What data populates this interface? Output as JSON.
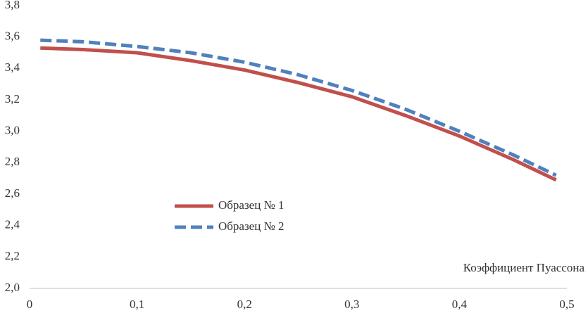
{
  "chart_data": {
    "type": "line",
    "x_label": "Коэффициент Пуассона",
    "x": [
      0.01,
      0.05,
      0.1,
      0.15,
      0.2,
      0.25,
      0.3,
      0.35,
      0.4,
      0.45,
      0.49
    ],
    "series": [
      {
        "name": "Образец № 1",
        "color": "#c0504d",
        "dash": false,
        "values": [
          3.53,
          3.52,
          3.5,
          3.45,
          3.39,
          3.31,
          3.22,
          3.1,
          2.97,
          2.82,
          2.69
        ]
      },
      {
        "name": "Образец № 2",
        "color": "#4f81bd",
        "dash": true,
        "values": [
          3.58,
          3.57,
          3.54,
          3.5,
          3.44,
          3.36,
          3.26,
          3.14,
          3.0,
          2.85,
          2.72
        ]
      }
    ],
    "xlim": [
      0,
      0.5
    ],
    "xticks": [
      0,
      {
        "value": 0.1,
        "label": "0,1"
      },
      {
        "value": 0.2,
        "label": "0,2"
      },
      {
        "value": 0.3,
        "label": "0,3"
      },
      {
        "value": 0.4,
        "label": "0,4"
      },
      {
        "value": 0.5,
        "label": "0,5"
      }
    ],
    "ylim": [
      2.0,
      3.8
    ],
    "yticks": [
      {
        "value": 2.0,
        "label": "2,0"
      },
      {
        "value": 2.2,
        "label": "2,2"
      },
      {
        "value": 2.4,
        "label": "2,4"
      },
      {
        "value": 2.6,
        "label": "2,6"
      },
      {
        "value": 2.8,
        "label": "2,8"
      },
      {
        "value": 3.0,
        "label": "3,0"
      },
      {
        "value": 3.2,
        "label": "3,2"
      },
      {
        "value": 3.4,
        "label": "3,4"
      },
      {
        "value": 3.6,
        "label": "3,6"
      },
      {
        "value": 3.8,
        "label": "3,8"
      }
    ],
    "grid": false
  }
}
